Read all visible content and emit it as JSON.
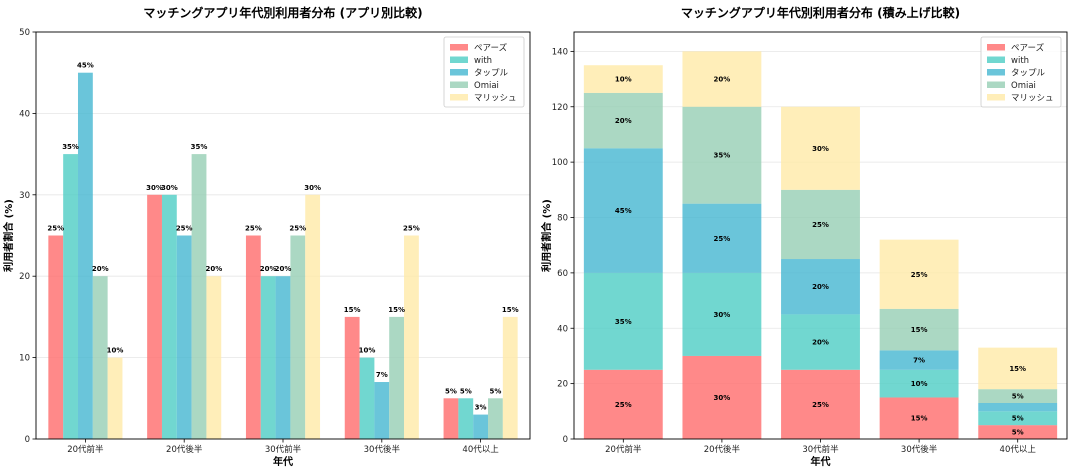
{
  "colors": {
    "ペアーズ": "#ff6b6b",
    "with": "#4ecdc4",
    "タップル": "#45b7d1",
    "Omiai": "#96ceb4",
    "マリッシュ": "#ffeaa7"
  },
  "chart_data": [
    {
      "type": "bar",
      "title": "マッチングアプリ年代別利用者分布 (アプリ別比較)",
      "xlabel": "年代",
      "ylabel": "利用者割合 (%)",
      "ylim": [
        0,
        50
      ],
      "yticks": [
        0,
        10,
        20,
        30,
        40,
        50
      ],
      "grid": true,
      "legend_position": "top-right",
      "categories": [
        "20代前半",
        "20代後半",
        "30代前半",
        "30代後半",
        "40代以上"
      ],
      "series": [
        {
          "name": "ペアーズ",
          "values": [
            25,
            30,
            25,
            15,
            5
          ],
          "labels": [
            "25%",
            "30%",
            "25%",
            "15%",
            "5%"
          ]
        },
        {
          "name": "with",
          "values": [
            35,
            30,
            20,
            10,
            5
          ],
          "labels": [
            "35%",
            "30%",
            "20%",
            "10%",
            "5%"
          ]
        },
        {
          "name": "タップル",
          "values": [
            45,
            25,
            20,
            7,
            3
          ],
          "labels": [
            "45%",
            "25%",
            "20%",
            "7%",
            "3%"
          ]
        },
        {
          "name": "Omiai",
          "values": [
            20,
            35,
            25,
            15,
            5
          ],
          "labels": [
            "20%",
            "35%",
            "25%",
            "15%",
            "5%"
          ]
        },
        {
          "name": "マリッシュ",
          "values": [
            10,
            20,
            30,
            25,
            15
          ],
          "labels": [
            "10%",
            "20%",
            "30%",
            "25%",
            "15%"
          ]
        }
      ]
    },
    {
      "type": "bar",
      "stacked": true,
      "title": "マッチングアプリ年代別利用者分布 (積み上げ比較)",
      "xlabel": "年代",
      "ylabel": "利用者割合 (%)",
      "ylim": [
        0,
        147
      ],
      "yticks": [
        0,
        20,
        40,
        60,
        80,
        100,
        120,
        140
      ],
      "grid": true,
      "legend_position": "top-right",
      "categories": [
        "20代前半",
        "20代後半",
        "30代前半",
        "30代後半",
        "40代以上"
      ],
      "series": [
        {
          "name": "ペアーズ",
          "values": [
            25,
            30,
            25,
            15,
            5
          ],
          "labels": [
            "25%",
            "30%",
            "25%",
            "15%",
            "5%"
          ]
        },
        {
          "name": "with",
          "values": [
            35,
            30,
            20,
            10,
            5
          ],
          "labels": [
            "35%",
            "30%",
            "20%",
            "10%",
            "5%"
          ]
        },
        {
          "name": "タップル",
          "values": [
            45,
            25,
            20,
            7,
            3
          ],
          "labels": [
            "45%",
            "25%",
            "20%",
            "7%",
            ""
          ]
        },
        {
          "name": "Omiai",
          "values": [
            20,
            35,
            25,
            15,
            5
          ],
          "labels": [
            "20%",
            "35%",
            "25%",
            "15%",
            "5%"
          ]
        },
        {
          "name": "マリッシュ",
          "values": [
            10,
            20,
            30,
            25,
            15
          ],
          "labels": [
            "10%",
            "20%",
            "30%",
            "25%",
            "15%"
          ]
        }
      ]
    }
  ]
}
